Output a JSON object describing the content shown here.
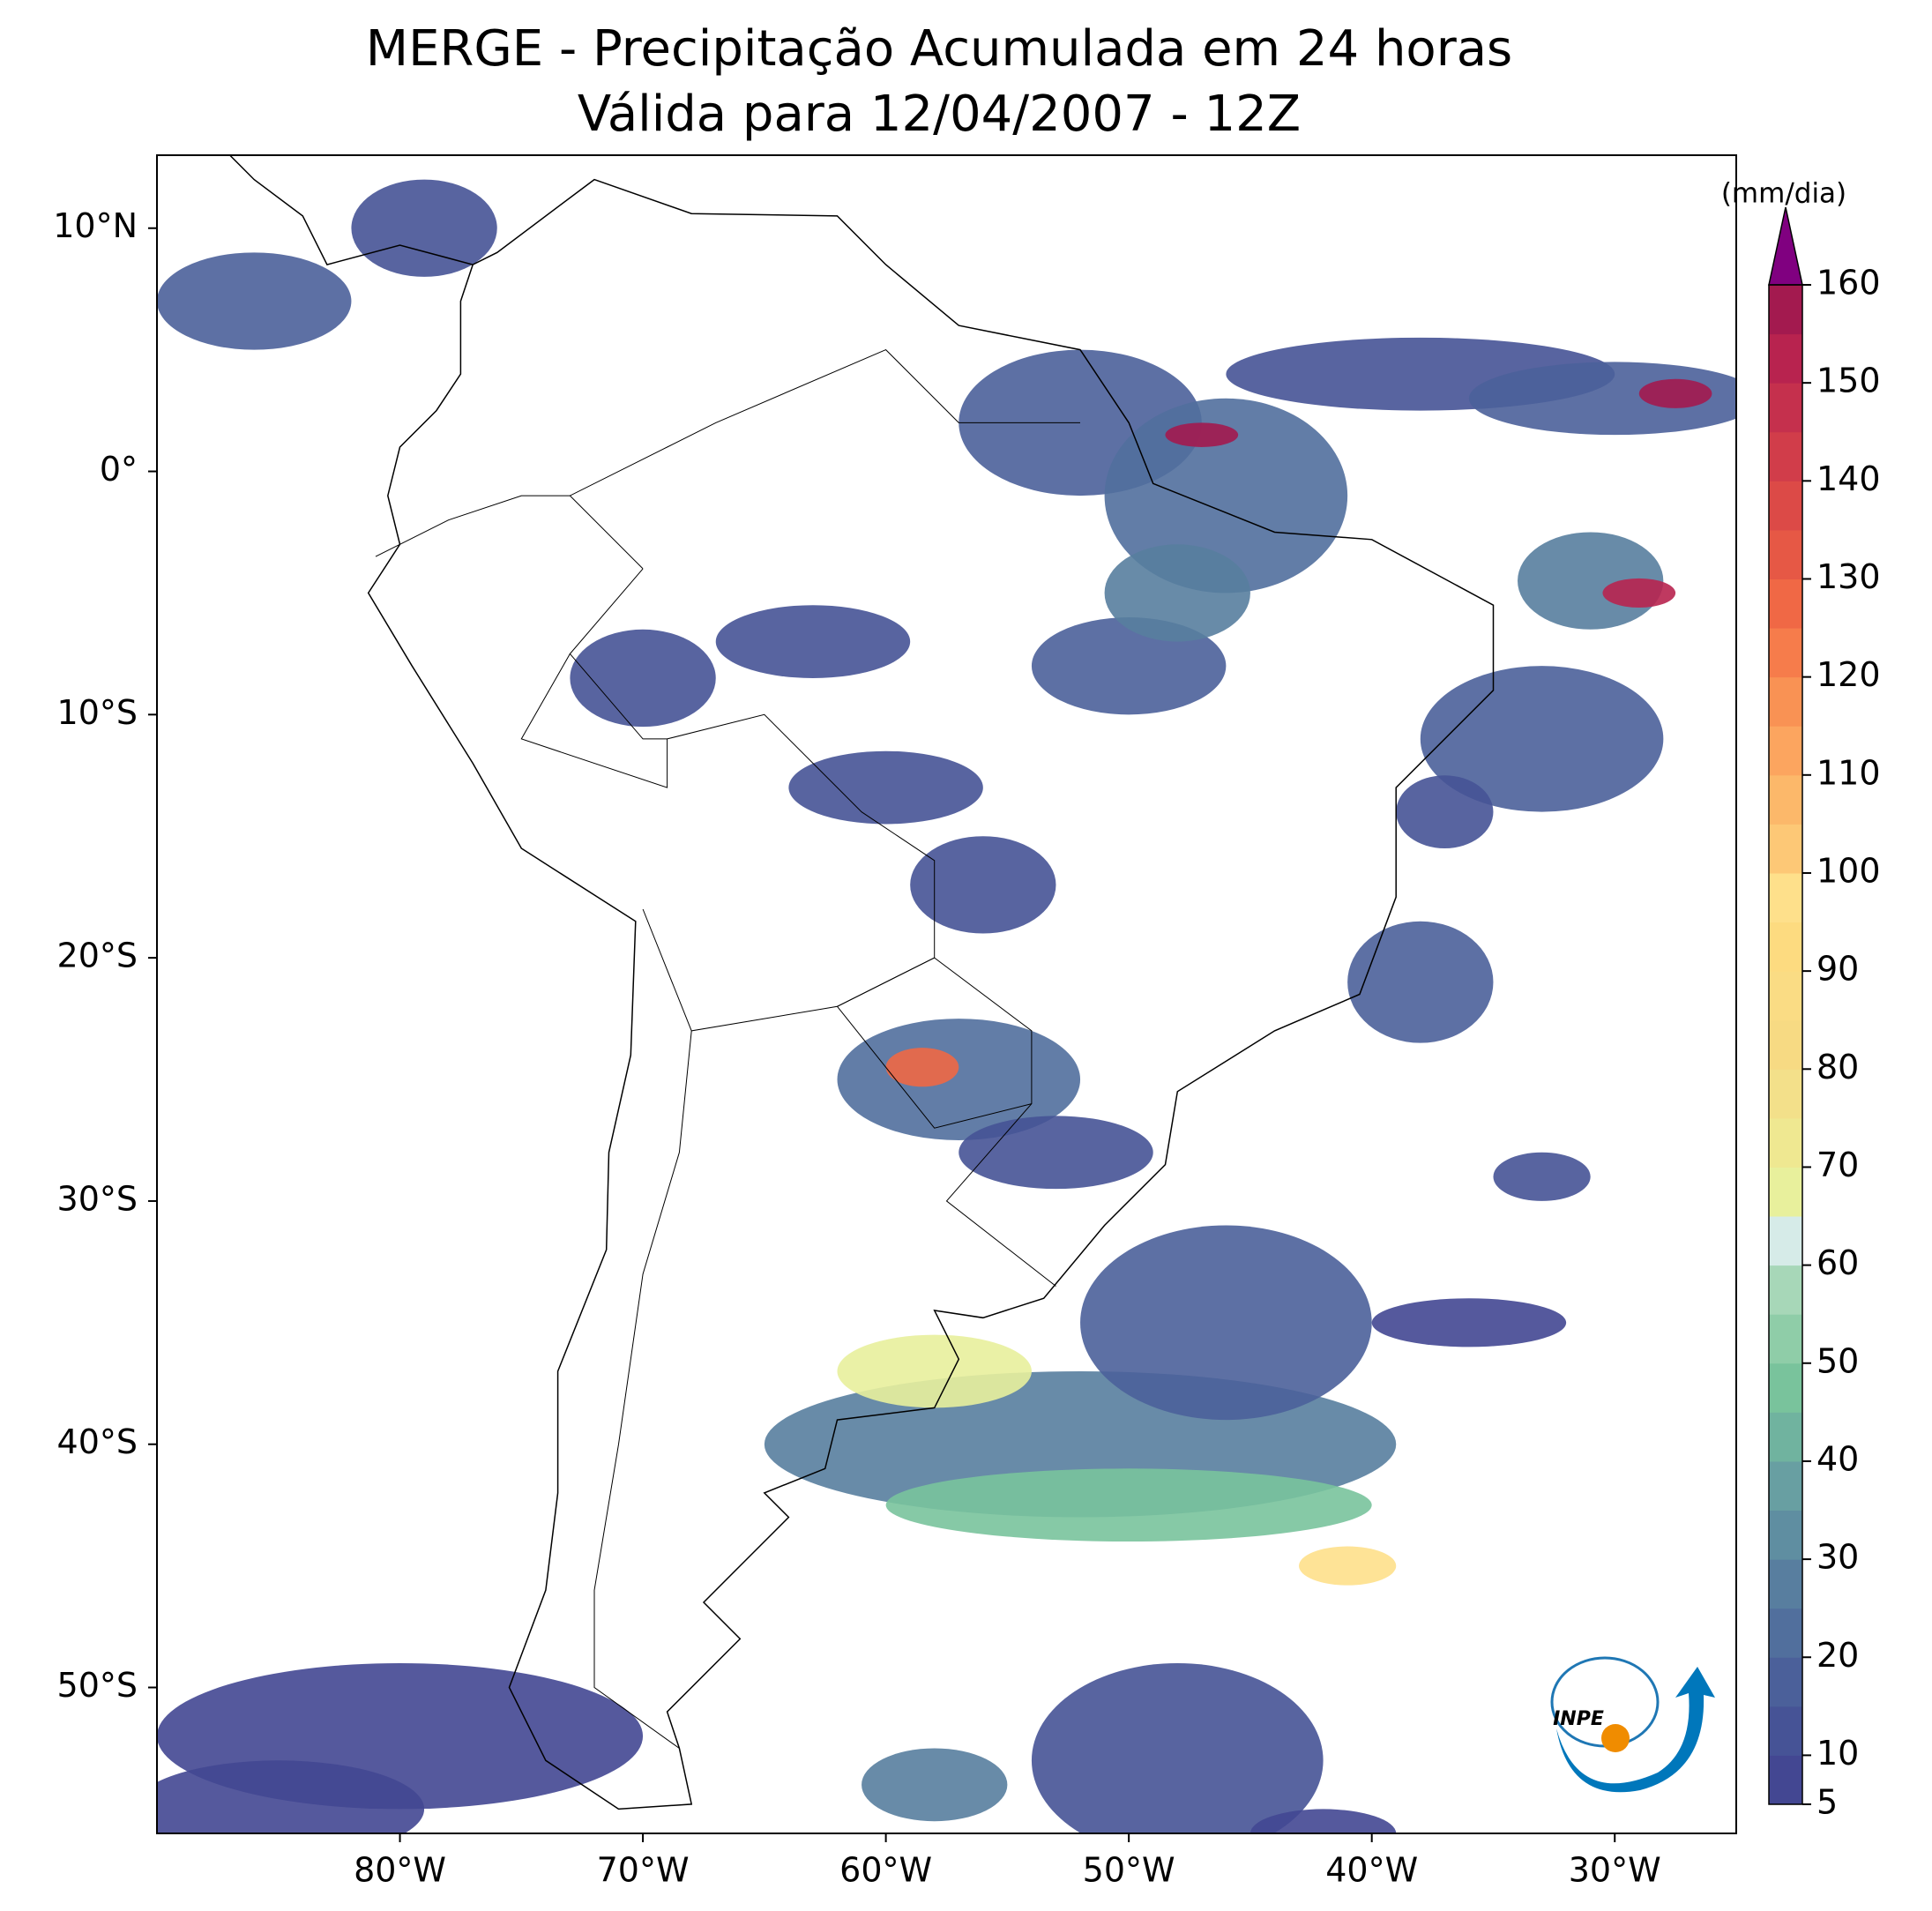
{
  "chart_data": {
    "type": "map",
    "title": "MERGE - Precipitação Acumulada em 24 horas",
    "subtitle": "Válida para 12/04/2007 - 12Z",
    "xlim": [
      -90,
      -25
    ],
    "ylim": [
      -56,
      13
    ],
    "xticks": [
      {
        "value": -80,
        "label": "80°W"
      },
      {
        "value": -70,
        "label": "70°W"
      },
      {
        "value": -60,
        "label": "60°W"
      },
      {
        "value": -50,
        "label": "50°W"
      },
      {
        "value": -40,
        "label": "40°W"
      },
      {
        "value": -30,
        "label": "30°W"
      }
    ],
    "yticks": [
      {
        "value": 10,
        "label": "10°N"
      },
      {
        "value": 0,
        "label": "0°"
      },
      {
        "value": -10,
        "label": "10°S"
      },
      {
        "value": -20,
        "label": "20°S"
      },
      {
        "value": -30,
        "label": "30°S"
      },
      {
        "value": -40,
        "label": "40°S"
      },
      {
        "value": -50,
        "label": "50°S"
      }
    ],
    "colorbar": {
      "label": "(mm/dia)",
      "levels": [
        5,
        10,
        15,
        20,
        25,
        30,
        35,
        40,
        45,
        50,
        55,
        60,
        65,
        70,
        75,
        80,
        85,
        90,
        95,
        100,
        105,
        110,
        115,
        120,
        125,
        130,
        135,
        140,
        145,
        150,
        155,
        160
      ],
      "ticks": [
        5,
        10,
        20,
        30,
        40,
        50,
        60,
        70,
        80,
        90,
        100,
        110,
        120,
        130,
        140,
        150,
        160
      ],
      "colors": [
        "#434792",
        "#465396",
        "#4b609a",
        "#516f9d",
        "#587e9f",
        "#5f8ea1",
        "#689fa2",
        "#70b39f",
        "#79c39c",
        "#8fcda8",
        "#a7d7b8",
        "#d6ebe8",
        "#e8f09c",
        "#efe891",
        "#f3e08a",
        "#f7da83",
        "#fadc84",
        "#fddb80",
        "#fee08b",
        "#fdc876",
        "#fcb86a",
        "#fca55f",
        "#f99254",
        "#f67c4b",
        "#f06845",
        "#e65845",
        "#dc4a47",
        "#d13d4a",
        "#c5304d",
        "#b8234f",
        "#a31a4f"
      ],
      "extend_color": "#800080"
    },
    "logo": "INPE"
  }
}
